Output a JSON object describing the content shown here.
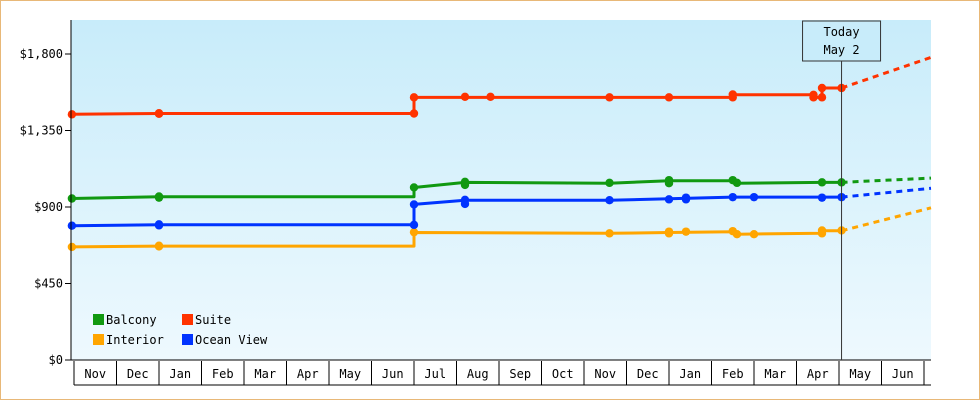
{
  "chart_data": {
    "type": "line",
    "title": "",
    "xlabel": "",
    "ylabel": "",
    "ylim": [
      0,
      2000
    ],
    "y_ticks": [
      {
        "value": 0,
        "label": "$0"
      },
      {
        "value": 450,
        "label": "$450"
      },
      {
        "value": 900,
        "label": "$900"
      },
      {
        "value": 1350,
        "label": "$1,350"
      },
      {
        "value": 1800,
        "label": "$1,800"
      }
    ],
    "x_ticks": [
      "Nov",
      "Dec",
      "Jan",
      "Feb",
      "Mar",
      "Apr",
      "May",
      "Jun",
      "Jul",
      "Aug",
      "Sep",
      "Oct",
      "Nov",
      "Dec",
      "Jan",
      "Feb",
      "Mar",
      "Apr",
      "May",
      "Jun"
    ],
    "x_range_months": [
      0,
      20
    ],
    "today": {
      "label_line1": "Today",
      "label_line2": "May 2",
      "month": 18.06
    },
    "grid": false,
    "background_gradient": [
      "#c8ecfa",
      "#eef9fe"
    ],
    "legend": {
      "position": "bottom-left",
      "entries": [
        {
          "name": "Balcony",
          "color": "#119911"
        },
        {
          "name": "Suite",
          "color": "#ff3300"
        },
        {
          "name": "Interior",
          "color": "#ffa500"
        },
        {
          "name": "Ocean View",
          "color": "#0033ff"
        }
      ]
    },
    "series": [
      {
        "name": "Balcony",
        "color": "#119911",
        "points": [
          [
            -0.05,
            950
          ],
          [
            2.0,
            960
          ],
          [
            8.0,
            960
          ],
          [
            8.0,
            1015
          ],
          [
            9.2,
            1045
          ],
          [
            12.6,
            1040
          ],
          [
            14.0,
            1055
          ],
          [
            15.5,
            1055
          ],
          [
            15.6,
            1040
          ],
          [
            17.6,
            1045
          ],
          [
            18.06,
            1045
          ]
        ],
        "dots": [
          [
            -0.05,
            950
          ],
          [
            2.0,
            955
          ],
          [
            2.0,
            962
          ],
          [
            8.0,
            1015
          ],
          [
            9.2,
            1030
          ],
          [
            9.2,
            1048
          ],
          [
            12.6,
            1042
          ],
          [
            14.0,
            1040
          ],
          [
            14.0,
            1058
          ],
          [
            15.5,
            1058
          ],
          [
            15.6,
            1042
          ],
          [
            17.6,
            1045
          ],
          [
            18.06,
            1045
          ]
        ],
        "forecast": [
          [
            18.06,
            1045
          ],
          [
            20.3,
            1070
          ]
        ]
      },
      {
        "name": "Suite",
        "color": "#ff3300",
        "points": [
          [
            -0.05,
            1445
          ],
          [
            2.0,
            1450
          ],
          [
            8.0,
            1450
          ],
          [
            8.0,
            1545
          ],
          [
            12.6,
            1545
          ],
          [
            14.0,
            1545
          ],
          [
            15.5,
            1545
          ],
          [
            15.5,
            1560
          ],
          [
            17.4,
            1560
          ],
          [
            17.4,
            1545
          ],
          [
            17.6,
            1545
          ],
          [
            17.6,
            1600
          ],
          [
            18.06,
            1600
          ]
        ],
        "dots": [
          [
            -0.05,
            1445
          ],
          [
            2.0,
            1448
          ],
          [
            2.0,
            1452
          ],
          [
            8.0,
            1450
          ],
          [
            8.0,
            1545
          ],
          [
            9.2,
            1548
          ],
          [
            9.8,
            1548
          ],
          [
            12.6,
            1545
          ],
          [
            14.0,
            1545
          ],
          [
            15.5,
            1545
          ],
          [
            15.5,
            1562
          ],
          [
            17.4,
            1560
          ],
          [
            17.4,
            1545
          ],
          [
            17.6,
            1545
          ],
          [
            17.6,
            1600
          ],
          [
            18.06,
            1600
          ]
        ],
        "forecast": [
          [
            18.06,
            1600
          ],
          [
            20.3,
            1780
          ]
        ]
      },
      {
        "name": "Interior",
        "color": "#ffa500",
        "points": [
          [
            -0.05,
            665
          ],
          [
            2.0,
            670
          ],
          [
            8.0,
            670
          ],
          [
            8.0,
            750
          ],
          [
            12.6,
            745
          ],
          [
            14.0,
            750
          ],
          [
            15.5,
            755
          ],
          [
            15.6,
            740
          ],
          [
            17.6,
            745
          ],
          [
            17.6,
            760
          ],
          [
            18.06,
            760
          ]
        ],
        "dots": [
          [
            -0.05,
            665
          ],
          [
            2.0,
            668
          ],
          [
            2.0,
            672
          ],
          [
            8.0,
            752
          ],
          [
            12.6,
            745
          ],
          [
            14.0,
            745
          ],
          [
            14.0,
            755
          ],
          [
            14.4,
            755
          ],
          [
            15.5,
            758
          ],
          [
            15.6,
            740
          ],
          [
            16.0,
            740
          ],
          [
            17.6,
            745
          ],
          [
            17.6,
            762
          ],
          [
            18.06,
            762
          ]
        ],
        "forecast": [
          [
            18.06,
            760
          ],
          [
            20.3,
            895
          ]
        ]
      },
      {
        "name": "Ocean View",
        "color": "#0033ff",
        "points": [
          [
            -0.05,
            790
          ],
          [
            2.0,
            795
          ],
          [
            8.0,
            795
          ],
          [
            8.0,
            915
          ],
          [
            9.2,
            940
          ],
          [
            12.6,
            940
          ],
          [
            14.0,
            948
          ],
          [
            15.5,
            958
          ],
          [
            17.6,
            958
          ],
          [
            18.06,
            958
          ]
        ],
        "dots": [
          [
            -0.05,
            790
          ],
          [
            2.0,
            792
          ],
          [
            2.0,
            798
          ],
          [
            8.0,
            795
          ],
          [
            8.0,
            915
          ],
          [
            9.2,
            918
          ],
          [
            9.2,
            942
          ],
          [
            12.6,
            940
          ],
          [
            14.0,
            945
          ],
          [
            14.4,
            945
          ],
          [
            14.4,
            955
          ],
          [
            15.5,
            958
          ],
          [
            16.0,
            958
          ],
          [
            17.6,
            955
          ],
          [
            18.06,
            958
          ]
        ],
        "forecast": [
          [
            18.06,
            958
          ],
          [
            20.3,
            1010
          ]
        ]
      }
    ]
  }
}
